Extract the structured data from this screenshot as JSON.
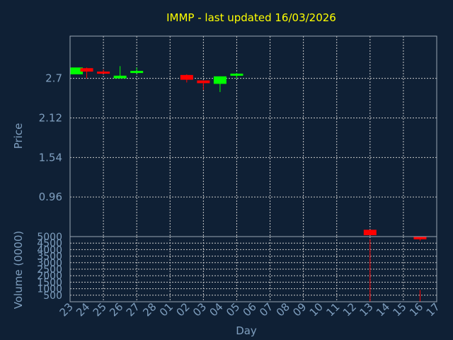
{
  "chart_data": {
    "type": "candlestick",
    "title": "IMMP - last updated 16/03/2026",
    "xlabel": "Day",
    "price_panel": {
      "ylabel": "Price",
      "yticks": [
        "0.96",
        "1.54",
        "2.12",
        "2.7"
      ],
      "ylim": [
        0.38,
        3.32
      ]
    },
    "volume_panel": {
      "ylabel": "Volume (0000)",
      "yticks": [
        "500",
        "1000",
        "1500",
        "2000",
        "2500",
        "3000",
        "3500",
        "4000",
        "4500",
        "5000"
      ],
      "ylim": [
        0,
        5000
      ]
    },
    "x_labels": [
      "23",
      "24",
      "25",
      "26",
      "27",
      "28",
      "01",
      "02",
      "03",
      "04",
      "05",
      "06",
      "07",
      "08",
      "09",
      "10",
      "11",
      "12",
      "13",
      "14",
      "15",
      "16",
      "17"
    ],
    "candles": [
      {
        "day": "23",
        "open": 2.76,
        "close": 2.86,
        "high": 2.88,
        "low": 2.76,
        "volume": 0
      },
      {
        "day": "24",
        "open": 2.85,
        "close": 2.8,
        "high": 2.86,
        "low": 2.7,
        "volume": 0
      },
      {
        "day": "25",
        "open": 2.8,
        "close": 2.79,
        "high": 2.83,
        "low": 2.77,
        "volume": 0
      },
      {
        "day": "26",
        "open": 2.7,
        "close": 2.74,
        "high": 2.88,
        "low": 2.7,
        "volume": 0
      },
      {
        "day": "27",
        "open": 2.78,
        "close": 2.81,
        "high": 2.86,
        "low": 2.77,
        "volume": 0
      },
      {
        "day": "02",
        "open": 2.75,
        "close": 2.68,
        "high": 2.76,
        "low": 2.64,
        "volume": 0
      },
      {
        "day": "03",
        "open": 2.67,
        "close": 2.63,
        "high": 2.67,
        "low": 2.53,
        "volume": 0
      },
      {
        "day": "04",
        "open": 2.62,
        "close": 2.73,
        "high": 2.73,
        "low": 2.5,
        "volume": 0
      },
      {
        "day": "05",
        "open": 2.74,
        "close": 2.77,
        "high": 2.78,
        "low": 2.7,
        "volume": 0
      },
      {
        "day": "13",
        "open": 0.48,
        "close": 0.4,
        "high": 0.48,
        "low": 0.4,
        "volume": 4800
      },
      {
        "day": "16",
        "open": 0.38,
        "close": 0.34,
        "high": 0.38,
        "low": 0.32,
        "volume": 900
      }
    ],
    "colors": {
      "up": "#00ff00",
      "down": "#ff0000",
      "background": "#0f2035",
      "title": "#ffff00",
      "text": "#7f9fbf"
    }
  }
}
